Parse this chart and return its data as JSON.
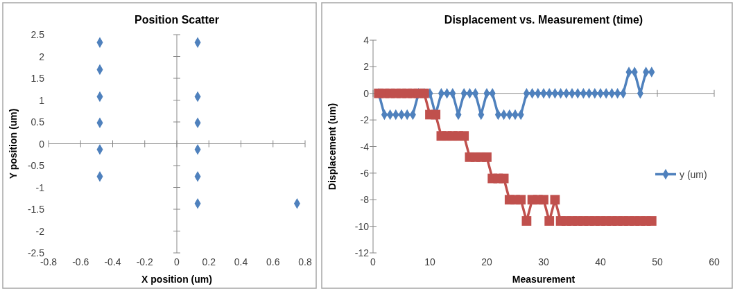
{
  "chart_data": [
    {
      "type": "scatter",
      "title": "Position Scatter",
      "xlabel": "X position (um)",
      "ylabel": "Y position (um)",
      "x": [
        -0.48,
        -0.48,
        -0.48,
        -0.48,
        -0.48,
        -0.48,
        0.13,
        0.13,
        0.13,
        0.13,
        0.13,
        0.13,
        0.75
      ],
      "values": [
        2.32,
        1.7,
        1.08,
        0.48,
        -0.13,
        -0.75,
        2.32,
        1.08,
        0.48,
        -0.13,
        -0.75,
        -1.37,
        -1.37
      ],
      "color": "#4f81bd",
      "marker": "diamond",
      "xlim": [
        -0.8,
        0.8
      ],
      "xticks": [
        -0.8,
        -0.6,
        -0.4,
        -0.2,
        0,
        0.2,
        0.4,
        0.6,
        0.8
      ],
      "ylim": [
        -2.5,
        2.5
      ],
      "yticks": [
        -2.5,
        -2,
        -1.5,
        -1,
        -0.5,
        0,
        0.5,
        1,
        1.5,
        2,
        2.5
      ]
    },
    {
      "type": "line",
      "title": "Displacement vs. Measurement (time)",
      "xlabel": "Measurement",
      "ylabel": "Displacement (um)",
      "x": [
        1,
        2,
        3,
        4,
        5,
        6,
        7,
        8,
        9,
        10,
        11,
        12,
        13,
        14,
        15,
        16,
        17,
        18,
        19,
        20,
        21,
        22,
        23,
        24,
        25,
        26,
        27,
        28,
        29,
        30,
        31,
        32,
        33,
        34,
        35,
        36,
        37,
        38,
        39,
        40,
        41,
        42,
        43,
        44,
        45,
        46,
        47,
        48,
        49
      ],
      "series": [
        {
          "name": "y (um)",
          "color": "#4f81bd",
          "marker": "diamond",
          "values": [
            0,
            -1.6,
            -1.6,
            -1.6,
            -1.6,
            -1.6,
            -1.6,
            0,
            0,
            0,
            -1.6,
            0,
            0,
            0,
            -1.6,
            0,
            0,
            0,
            -1.6,
            0,
            0,
            -1.6,
            -1.6,
            -1.6,
            -1.6,
            -1.6,
            0,
            0,
            0,
            0,
            0,
            0,
            0,
            0,
            0,
            0,
            0,
            0,
            0,
            0,
            0,
            0,
            0,
            0,
            1.6,
            1.6,
            0,
            1.6,
            1.6
          ]
        },
        {
          "color": "#c0504d",
          "marker": "square",
          "values": [
            0,
            0,
            0,
            0,
            0,
            0,
            0,
            0,
            0,
            -1.6,
            -1.6,
            -3.2,
            -3.2,
            -3.2,
            -3.2,
            -3.2,
            -4.8,
            -4.8,
            -4.8,
            -4.8,
            -6.4,
            -6.4,
            -6.4,
            -8,
            -8,
            -8,
            -9.6,
            -8,
            -8,
            -8,
            -9.6,
            -8,
            -9.6,
            -9.6,
            -9.6,
            -9.6,
            -9.6,
            -9.6,
            -9.6,
            -9.6,
            -9.6,
            -9.6,
            -9.6,
            -9.6,
            -9.6,
            -9.6,
            -9.6,
            -9.6,
            -9.6
          ]
        }
      ],
      "xlim": [
        0,
        60
      ],
      "xticks": [
        0,
        10,
        20,
        30,
        40,
        50,
        60
      ],
      "ylim": [
        -12,
        4
      ],
      "yticks": [
        -12,
        -10,
        -8,
        -6,
        -4,
        -2,
        0,
        2,
        4
      ],
      "legend": "right"
    }
  ]
}
